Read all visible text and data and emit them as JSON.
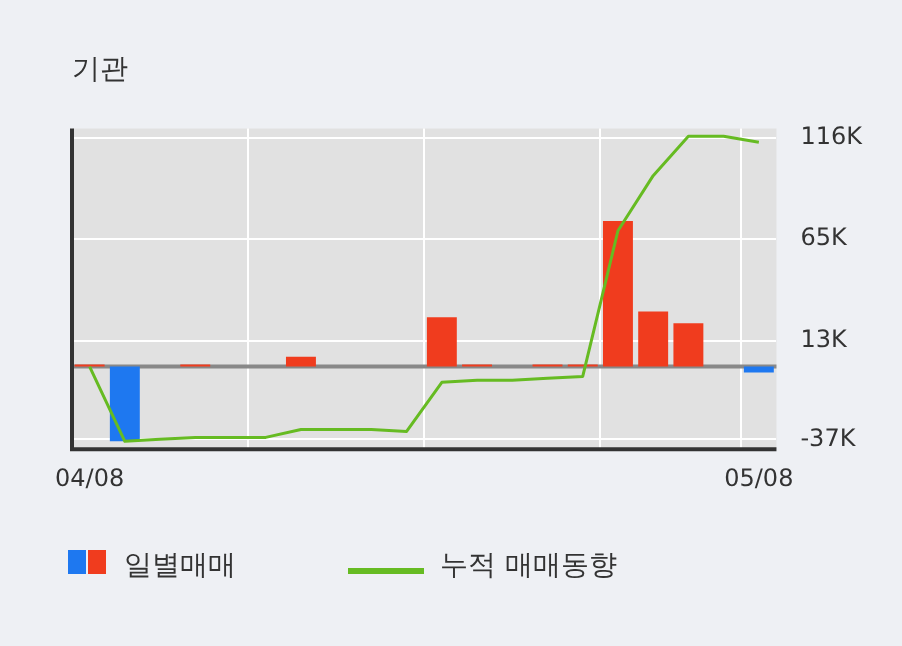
{
  "chart_data": {
    "type": "bar",
    "title": "기관",
    "categories": [
      "04/08",
      null,
      null,
      null,
      null,
      null,
      null,
      null,
      null,
      null,
      null,
      null,
      null,
      null,
      null,
      null,
      null,
      null,
      null,
      "05/08"
    ],
    "series": [
      {
        "name": "일별매매",
        "colors": [
          "#f03c1e",
          "#1e78f0",
          "#f03c1e",
          "#f03c1e",
          "#f03c1e",
          "#f03c1e",
          "#f03c1e",
          "#f03c1e",
          "#f03c1e",
          "#f03c1e",
          "#f03c1e",
          "#f03c1e",
          "#f03c1e",
          "#f03c1e",
          "#f03c1e",
          "#f03c1e",
          "#f03c1e",
          "#f03c1e",
          "#f03c1e",
          "#1e78f0"
        ],
        "values": [
          1000,
          -38000,
          0,
          1000,
          0,
          0,
          5000,
          0,
          0,
          0,
          25000,
          1000,
          0,
          1000,
          1000,
          74000,
          28000,
          22000,
          0,
          -3000
        ]
      },
      {
        "name": "누적 매매동향",
        "type": "line",
        "color": "#66bb22",
        "values": [
          0,
          -38000,
          -37000,
          -36000,
          -36000,
          -36000,
          -32000,
          -32000,
          -32000,
          -33000,
          -8000,
          -7000,
          -7000,
          -6000,
          -5000,
          69000,
          97000,
          117000,
          117000,
          114000
        ]
      }
    ],
    "ylim": [
      -42000,
      121000
    ],
    "yticks": [
      {
        "value": -37000,
        "label": "-37K"
      },
      {
        "value": 13000,
        "label": "13K"
      },
      {
        "value": 65000,
        "label": "65K"
      },
      {
        "value": 116000,
        "label": "116K"
      }
    ],
    "grid": true,
    "legend": "bottom"
  }
}
